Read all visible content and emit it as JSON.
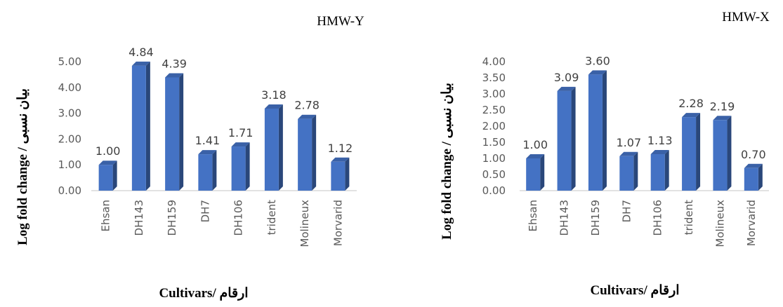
{
  "chart_data": [
    {
      "type": "bar",
      "title": "HMW-Y",
      "categories": [
        "Ehsan",
        "DH143",
        "DH159",
        "DH7",
        "DH106",
        "trident",
        "Molineux",
        "Morvarid"
      ],
      "values": [
        1.0,
        4.84,
        4.39,
        1.41,
        1.71,
        3.18,
        2.78,
        1.12
      ],
      "data_labels": [
        "1.00",
        "4.84",
        "4.39",
        "1.41",
        "1.71",
        "3.18",
        "2.78",
        "1.12"
      ],
      "ylim": [
        0,
        5
      ],
      "yticks": [
        "0.00",
        "1.00",
        "2.00",
        "3.00",
        "4.00",
        "5.00"
      ],
      "ylabel": "Log fold change / بیان نسبی",
      "xlabel": "Cultivars/ ارقام",
      "bar_color": "#4472C4",
      "grid": false
    },
    {
      "type": "bar",
      "title": "HMW-X",
      "categories": [
        "Ehsan",
        "DH143",
        "DH159",
        "DH7",
        "DH106",
        "trident",
        "Molineux",
        "Morvarid"
      ],
      "values": [
        1.0,
        3.09,
        3.6,
        1.07,
        1.13,
        2.28,
        2.19,
        0.7
      ],
      "data_labels": [
        "1.00",
        "3.09",
        "3.60",
        "1.07",
        "1.13",
        "2.28",
        "2.19",
        "0.70"
      ],
      "ylim": [
        0,
        4
      ],
      "yticks": [
        "0.00",
        "0.50",
        "1.00",
        "1.50",
        "2.00",
        "2.50",
        "3.00",
        "3.50",
        "4.00"
      ],
      "ylabel": "Log fold change / بیان نسبی",
      "xlabel": "Cultivars/ ارقام",
      "bar_color": "#4472C4",
      "grid": false
    }
  ]
}
